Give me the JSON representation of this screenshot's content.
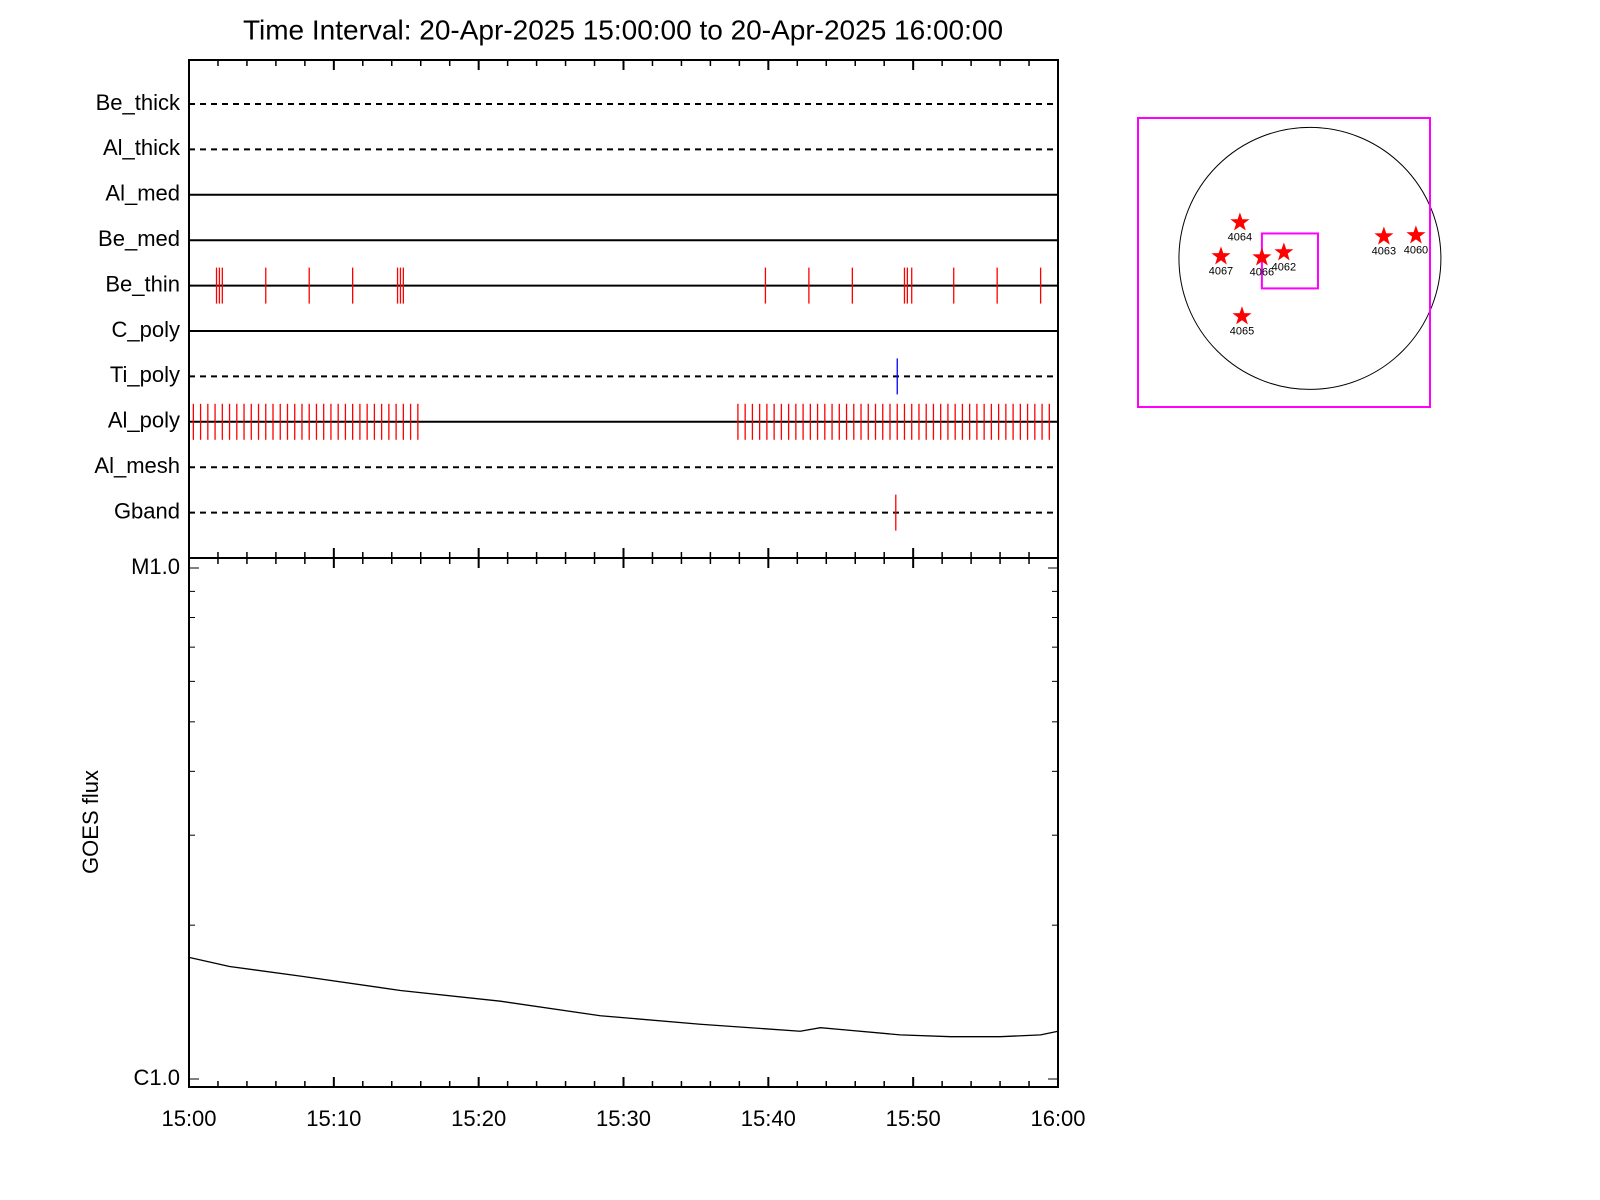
{
  "chart_data": [
    {
      "type": "event",
      "title": "Time Interval: 20-Apr-2025 15:00:00 to 20-Apr-2025 16:00:00",
      "categories": [
        "Be_thick",
        "Al_thick",
        "Al_med",
        "Be_med",
        "Be_thin",
        "C_poly",
        "Ti_poly",
        "Al_poly",
        "Al_mesh",
        "Gband"
      ],
      "line_styles": [
        "dashed",
        "dashed",
        "solid",
        "solid",
        "solid",
        "solid",
        "dashed",
        "solid",
        "dashed",
        "dashed"
      ],
      "event_colors": [
        "#ff0000",
        "#ff0000",
        "#ff0000",
        "#ff0000",
        "#ff0000",
        "#ff0000",
        "#0000ff",
        "#ff0000",
        "#ff0000",
        "#ff0000"
      ],
      "events": [
        [],
        [],
        [],
        [],
        [
          1.9,
          2.1,
          2.3,
          5.3,
          8.3,
          11.3,
          14.4,
          14.6,
          14.8,
          39.8,
          42.8,
          45.8,
          49.4,
          49.6,
          49.9,
          52.8,
          55.8,
          58.8
        ],
        [],
        [
          48.9
        ],
        [
          0.3,
          0.8,
          1.3,
          1.8,
          2.3,
          2.8,
          3.3,
          3.8,
          4.3,
          4.8,
          5.3,
          5.8,
          6.3,
          6.8,
          7.3,
          7.8,
          8.3,
          8.8,
          9.3,
          9.8,
          10.3,
          10.8,
          11.3,
          11.8,
          12.3,
          12.8,
          13.3,
          13.8,
          14.3,
          14.8,
          15.3,
          15.8,
          37.9,
          38.4,
          38.9,
          39.4,
          39.9,
          40.4,
          40.9,
          41.4,
          41.9,
          42.4,
          42.9,
          43.4,
          43.9,
          44.4,
          44.9,
          45.4,
          45.9,
          46.4,
          46.9,
          47.4,
          47.9,
          48.4,
          48.9,
          49.4,
          49.9,
          50.4,
          50.9,
          51.4,
          51.9,
          52.4,
          52.9,
          53.4,
          53.9,
          54.4,
          54.9,
          55.4,
          55.9,
          56.4,
          56.9,
          57.4,
          57.9,
          58.4,
          58.9,
          59.4
        ],
        [],
        [
          48.8
        ]
      ],
      "xlim": [
        0,
        60
      ]
    },
    {
      "type": "line",
      "ylabel": "GOES flux",
      "x": [
        0,
        2.8,
        7.7,
        14.6,
        21.5,
        28.4,
        35.3,
        42.2,
        43.6,
        45.0,
        49.1,
        52.6,
        56.0,
        58.8,
        60
      ],
      "values": [
        1.73e-06,
        1.66e-06,
        1.59e-06,
        1.49e-06,
        1.42e-06,
        1.33e-06,
        1.28e-06,
        1.24e-06,
        1.26e-06,
        1.25e-06,
        1.22e-06,
        1.21e-06,
        1.21e-06,
        1.22e-06,
        1.24e-06
      ],
      "color": "#000000",
      "log_y": true,
      "ylim": [
        1e-06,
        1e-05
      ],
      "yticks": [
        {
          "value": 1e-06,
          "label": "C1.0"
        },
        {
          "value": 1e-05,
          "label": "M1.0"
        }
      ],
      "yminor": [
        2e-06,
        3e-06,
        4e-06,
        5e-06,
        6e-06,
        7e-06,
        8e-06,
        9e-06
      ],
      "xlim": [
        0,
        60
      ],
      "xticks": [
        {
          "value": 0,
          "label": "15:00"
        },
        {
          "value": 10,
          "label": "15:10"
        },
        {
          "value": 20,
          "label": "15:20"
        },
        {
          "value": 30,
          "label": "15:30"
        },
        {
          "value": 40,
          "label": "15:40"
        },
        {
          "value": 50,
          "label": "15:50"
        },
        {
          "value": 60,
          "label": "16:00"
        }
      ],
      "xminor": [
        2,
        4,
        6,
        8,
        12,
        14,
        16,
        18,
        22,
        24,
        26,
        28,
        32,
        34,
        36,
        38,
        42,
        44,
        46,
        48,
        52,
        54,
        56,
        58
      ]
    },
    {
      "type": "map",
      "xlim": [
        -1260,
        880
      ],
      "ylim": [
        -1090,
        1030
      ],
      "solar_radius": 960,
      "frame_color": "#ff00ff",
      "fov": [
        -352,
        -220,
        59,
        183
      ],
      "star_color": "#ff0000",
      "stars": [
        {
          "label": "4064",
          "x": -513,
          "y": 264
        },
        {
          "label": "4067",
          "x": -652,
          "y": 15
        },
        {
          "label": "4066",
          "x": -352,
          "y": 7
        },
        {
          "label": "4062",
          "x": -191,
          "y": 44
        },
        {
          "label": "4063",
          "x": 542,
          "y": 161
        },
        {
          "label": "4060",
          "x": 777,
          "y": 169
        },
        {
          "label": "4065",
          "x": -498,
          "y": -425
        }
      ]
    }
  ]
}
